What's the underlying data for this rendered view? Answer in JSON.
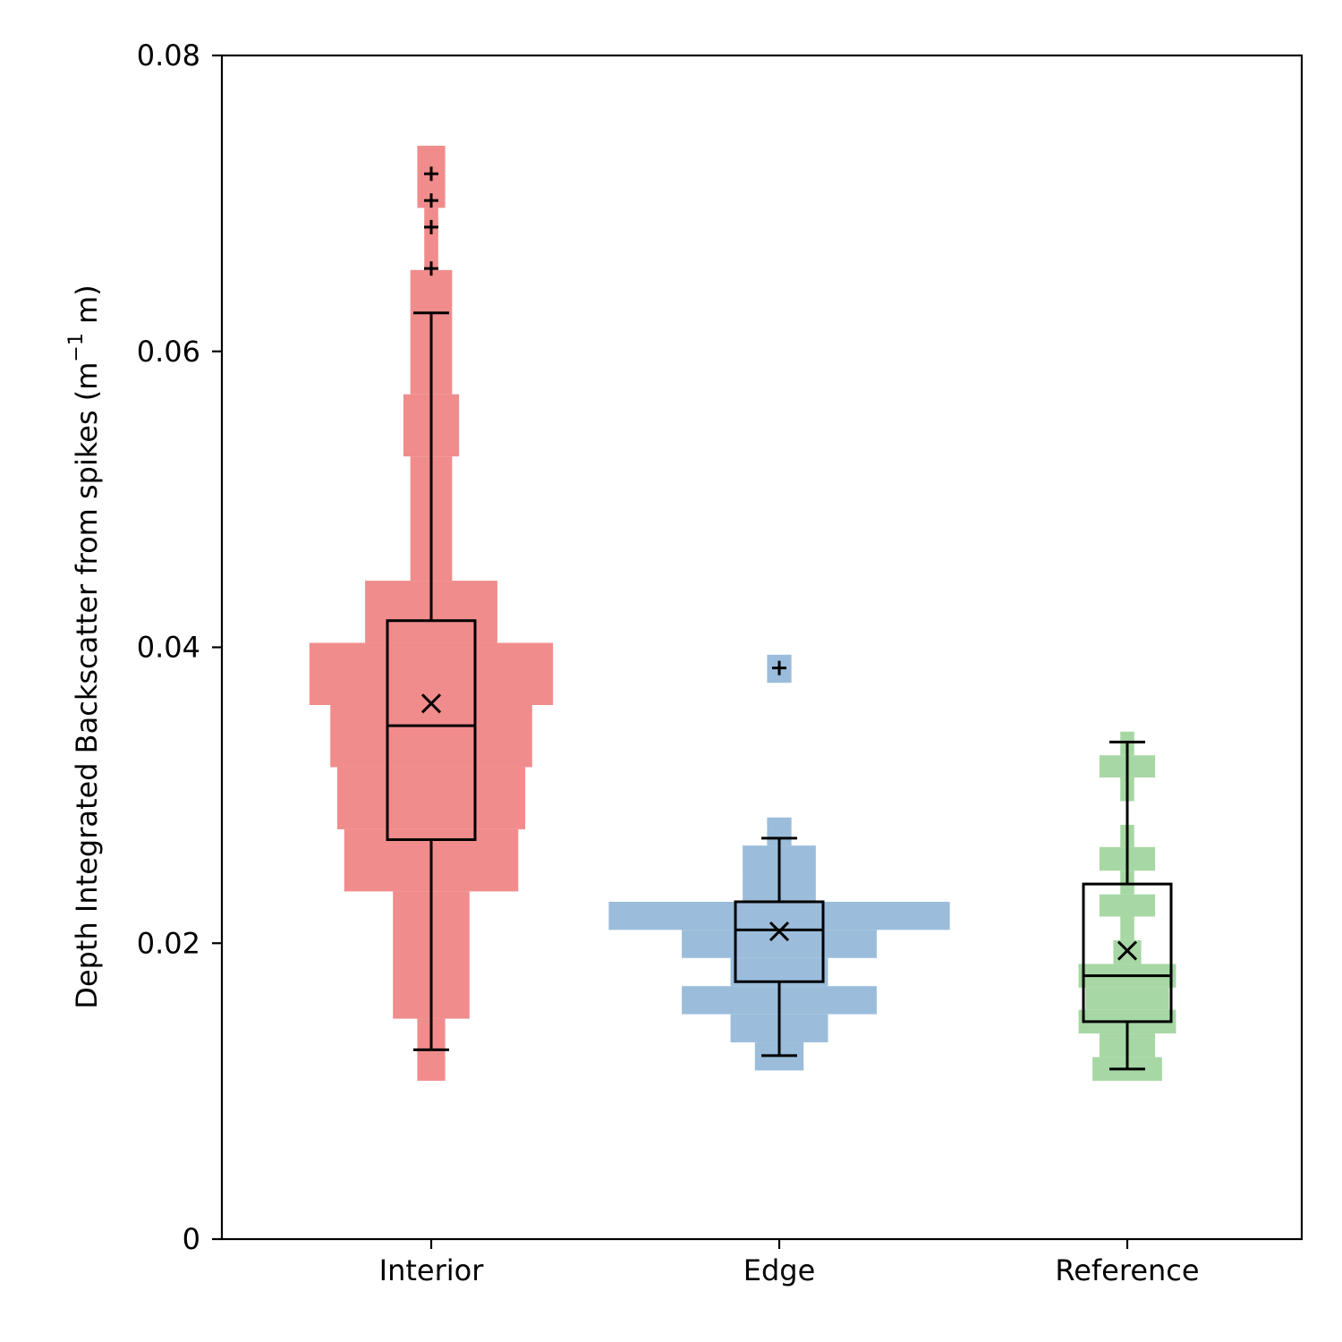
{
  "chart_data": {
    "type": "box",
    "title": "",
    "xlabel": "",
    "ylabel": "Depth Integrated Backscatter from spikes (m",
    "ylabel_sup": "−1",
    "ylabel_tail": " m)",
    "ylim": [
      0,
      0.08
    ],
    "yticks": [
      0,
      0.02,
      0.04,
      0.06,
      0.08
    ],
    "ytick_labels": [
      "0",
      "0.02",
      "0.04",
      "0.06",
      "0.08"
    ],
    "grid": false,
    "categories": [
      "Interior",
      "Edge",
      "Reference"
    ],
    "series": [
      {
        "category": "Interior",
        "color": "#f08c8c",
        "box": {
          "whisker_low": 0.0128,
          "q1": 0.027,
          "median": 0.0347,
          "q3": 0.0418,
          "whisker_high": 0.0626,
          "mean": 0.0362
        },
        "outliers": [
          0.0656,
          0.0684,
          0.0702,
          0.072
        ],
        "histogram": [
          {
            "y0": 0.0107,
            "y1": 0.0149,
            "halfwidth": 0.04
          },
          {
            "y0": 0.0149,
            "y1": 0.0235,
            "halfwidth": 0.11
          },
          {
            "y0": 0.0235,
            "y1": 0.0277,
            "halfwidth": 0.25
          },
          {
            "y0": 0.0277,
            "y1": 0.0319,
            "halfwidth": 0.27
          },
          {
            "y0": 0.0319,
            "y1": 0.0361,
            "halfwidth": 0.29
          },
          {
            "y0": 0.0361,
            "y1": 0.0403,
            "halfwidth": 0.35
          },
          {
            "y0": 0.0403,
            "y1": 0.0445,
            "halfwidth": 0.19
          },
          {
            "y0": 0.0445,
            "y1": 0.0529,
            "halfwidth": 0.06
          },
          {
            "y0": 0.0529,
            "y1": 0.0571,
            "halfwidth": 0.08
          },
          {
            "y0": 0.0571,
            "y1": 0.0655,
            "halfwidth": 0.06
          },
          {
            "y0": 0.0655,
            "y1": 0.0697,
            "halfwidth": 0.02
          },
          {
            "y0": 0.0697,
            "y1": 0.0739,
            "halfwidth": 0.04
          }
        ]
      },
      {
        "category": "Edge",
        "color": "#9bbddb",
        "box": {
          "whisker_low": 0.0124,
          "q1": 0.0174,
          "median": 0.0209,
          "q3": 0.0228,
          "whisker_high": 0.0271,
          "mean": 0.0208
        },
        "outliers": [
          0.0386
        ],
        "histogram": [
          {
            "y0": 0.0114,
            "y1": 0.0133,
            "halfwidth": 0.07
          },
          {
            "y0": 0.0133,
            "y1": 0.0152,
            "halfwidth": 0.14
          },
          {
            "y0": 0.0152,
            "y1": 0.0171,
            "halfwidth": 0.28
          },
          {
            "y0": 0.0171,
            "y1": 0.019,
            "halfwidth": 0.14
          },
          {
            "y0": 0.019,
            "y1": 0.0209,
            "halfwidth": 0.28
          },
          {
            "y0": 0.0209,
            "y1": 0.0228,
            "halfwidth": 0.49
          },
          {
            "y0": 0.0228,
            "y1": 0.0247,
            "halfwidth": 0.105
          },
          {
            "y0": 0.0247,
            "y1": 0.0266,
            "halfwidth": 0.105
          },
          {
            "y0": 0.0266,
            "y1": 0.0285,
            "halfwidth": 0.035
          },
          {
            "y0": 0.0376,
            "y1": 0.0395,
            "halfwidth": 0.035
          }
        ]
      },
      {
        "category": "Reference",
        "color": "#a7d7a4",
        "box": {
          "whisker_low": 0.0115,
          "q1": 0.0147,
          "median": 0.0178,
          "q3": 0.024,
          "whisker_high": 0.0336,
          "mean": 0.0195
        },
        "outliers": [],
        "histogram": [
          {
            "y0": 0.0107,
            "y1": 0.0123,
            "halfwidth": 0.1
          },
          {
            "y0": 0.0123,
            "y1": 0.0139,
            "halfwidth": 0.08
          },
          {
            "y0": 0.0139,
            "y1": 0.0155,
            "halfwidth": 0.14
          },
          {
            "y0": 0.0155,
            "y1": 0.017,
            "halfwidth": 0.12
          },
          {
            "y0": 0.017,
            "y1": 0.0186,
            "halfwidth": 0.14
          },
          {
            "y0": 0.0186,
            "y1": 0.0202,
            "halfwidth": 0.04
          },
          {
            "y0": 0.0202,
            "y1": 0.0218,
            "halfwidth": 0.02
          },
          {
            "y0": 0.0218,
            "y1": 0.0233,
            "halfwidth": 0.08
          },
          {
            "y0": 0.0233,
            "y1": 0.0249,
            "halfwidth": 0.02
          },
          {
            "y0": 0.0249,
            "y1": 0.0265,
            "halfwidth": 0.08
          },
          {
            "y0": 0.0265,
            "y1": 0.028,
            "halfwidth": 0.02
          },
          {
            "y0": 0.0296,
            "y1": 0.0312,
            "halfwidth": 0.02
          },
          {
            "y0": 0.0312,
            "y1": 0.0327,
            "halfwidth": 0.08
          },
          {
            "y0": 0.0327,
            "y1": 0.0343,
            "halfwidth": 0.02
          }
        ]
      }
    ]
  }
}
